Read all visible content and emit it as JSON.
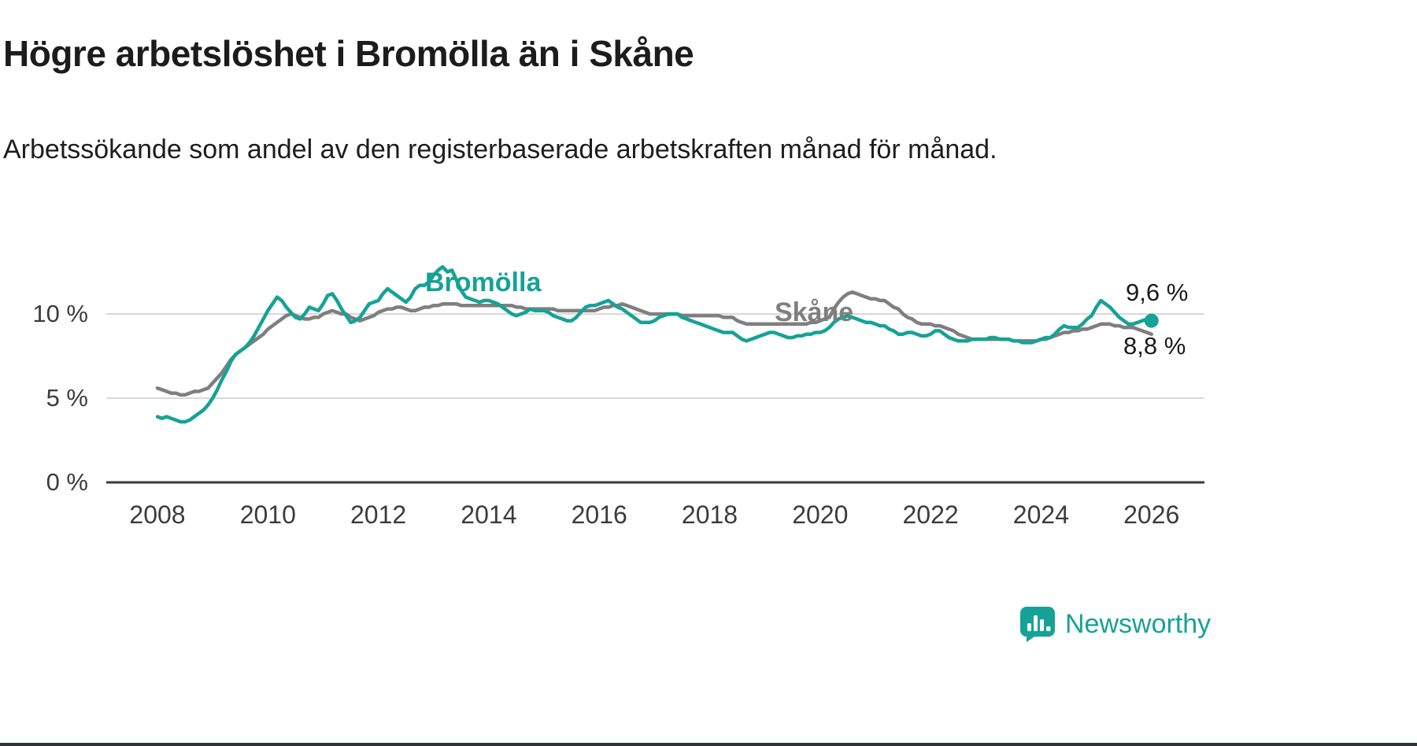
{
  "header": {
    "title": "Högre arbetslöshet i Bromölla än i Skåne",
    "subtitle": "Arbetssökande som andel av den registerbaserade arbetskraften månad för månad."
  },
  "branding": {
    "name": "Newsworthy",
    "color": "#16a296"
  },
  "chart_data": {
    "type": "line",
    "title": "Högre arbetslöshet i Bromölla än i Skåne",
    "subtitle": "Arbetssökande som andel av den registerbaserade arbetskraften månad för månad.",
    "unit": "%",
    "x_start": 2008,
    "x_end": 2026,
    "x_interval_months": 1,
    "x_ticks": [
      2008,
      2010,
      2012,
      2014,
      2016,
      2018,
      2020,
      2022,
      2024,
      2026
    ],
    "y_ticks": [
      0,
      5,
      10
    ],
    "y_tick_labels": [
      "0 %",
      "5 %",
      "10 %"
    ],
    "ylim": [
      0,
      13.5
    ],
    "grid": "horizontal-light",
    "grid_color": "#d8d8d8",
    "axis_color": "#3a3a3a",
    "legend_position": "inline",
    "series": [
      {
        "name": "Bromölla",
        "color": "#16a296",
        "end_label": "9,6 %",
        "end_value": 9.6,
        "end_marker": true,
        "values": [
          3.9,
          3.8,
          3.9,
          3.8,
          3.7,
          3.6,
          3.6,
          3.7,
          3.9,
          4.1,
          4.3,
          4.6,
          5.0,
          5.5,
          6.1,
          6.6,
          7.2,
          7.6,
          7.8,
          8.0,
          8.3,
          8.7,
          9.2,
          9.7,
          10.2,
          10.6,
          11.0,
          10.8,
          10.4,
          10.1,
          9.8,
          9.7,
          10.0,
          10.4,
          10.3,
          10.2,
          10.6,
          11.1,
          11.2,
          10.8,
          10.3,
          9.9,
          9.5,
          9.6,
          9.8,
          10.2,
          10.6,
          10.7,
          10.8,
          11.2,
          11.5,
          11.3,
          11.1,
          10.9,
          10.7,
          11.0,
          11.5,
          11.7,
          11.7,
          11.9,
          12.3,
          12.6,
          12.8,
          12.5,
          12.6,
          12.0,
          11.4,
          11.0,
          10.9,
          10.8,
          10.7,
          10.8,
          10.8,
          10.7,
          10.6,
          10.4,
          10.2,
          10.0,
          9.9,
          10.0,
          10.1,
          10.3,
          10.2,
          10.2,
          10.2,
          10.1,
          9.9,
          9.8,
          9.7,
          9.6,
          9.6,
          9.8,
          10.1,
          10.4,
          10.5,
          10.5,
          10.6,
          10.7,
          10.8,
          10.6,
          10.4,
          10.3,
          10.1,
          9.9,
          9.7,
          9.5,
          9.5,
          9.5,
          9.6,
          9.8,
          9.9,
          10.0,
          10.0,
          10.0,
          9.8,
          9.7,
          9.6,
          9.5,
          9.4,
          9.3,
          9.2,
          9.1,
          9.0,
          8.9,
          8.9,
          8.9,
          8.7,
          8.5,
          8.4,
          8.5,
          8.6,
          8.7,
          8.8,
          8.9,
          8.9,
          8.8,
          8.7,
          8.6,
          8.6,
          8.7,
          8.7,
          8.8,
          8.8,
          8.9,
          8.9,
          9.0,
          9.2,
          9.5,
          9.7,
          9.8,
          9.9,
          9.8,
          9.7,
          9.6,
          9.5,
          9.5,
          9.4,
          9.3,
          9.3,
          9.1,
          9.0,
          8.8,
          8.8,
          8.9,
          8.9,
          8.8,
          8.7,
          8.7,
          8.8,
          9.0,
          9.0,
          8.8,
          8.6,
          8.5,
          8.4,
          8.4,
          8.4,
          8.5,
          8.5,
          8.5,
          8.5,
          8.6,
          8.6,
          8.5,
          8.5,
          8.5,
          8.4,
          8.4,
          8.3,
          8.3,
          8.3,
          8.4,
          8.5,
          8.6,
          8.6,
          8.8,
          9.1,
          9.3,
          9.2,
          9.2,
          9.2,
          9.4,
          9.7,
          9.9,
          10.4,
          10.8,
          10.6,
          10.4,
          10.1,
          9.8,
          9.6,
          9.4,
          9.4,
          9.5,
          9.6,
          9.7,
          9.6
        ]
      },
      {
        "name": "Skåne",
        "color": "#7f7f7f",
        "end_label": "8,8 %",
        "end_value": 8.8,
        "end_marker": false,
        "values": [
          5.6,
          5.5,
          5.4,
          5.3,
          5.3,
          5.2,
          5.2,
          5.3,
          5.4,
          5.4,
          5.5,
          5.6,
          5.9,
          6.2,
          6.5,
          6.9,
          7.3,
          7.6,
          7.8,
          8.0,
          8.2,
          8.4,
          8.6,
          8.8,
          9.1,
          9.3,
          9.5,
          9.7,
          9.9,
          10.0,
          9.9,
          9.8,
          9.7,
          9.7,
          9.8,
          9.8,
          10.0,
          10.1,
          10.2,
          10.1,
          10.0,
          10.0,
          9.8,
          9.7,
          9.6,
          9.7,
          9.8,
          9.9,
          10.1,
          10.2,
          10.3,
          10.3,
          10.4,
          10.4,
          10.3,
          10.2,
          10.2,
          10.3,
          10.4,
          10.4,
          10.5,
          10.5,
          10.6,
          10.6,
          10.6,
          10.6,
          10.5,
          10.5,
          10.5,
          10.5,
          10.5,
          10.5,
          10.5,
          10.5,
          10.5,
          10.5,
          10.5,
          10.5,
          10.4,
          10.4,
          10.3,
          10.3,
          10.3,
          10.3,
          10.3,
          10.3,
          10.3,
          10.2,
          10.2,
          10.2,
          10.2,
          10.2,
          10.2,
          10.2,
          10.2,
          10.2,
          10.3,
          10.4,
          10.4,
          10.5,
          10.5,
          10.6,
          10.5,
          10.4,
          10.3,
          10.2,
          10.1,
          10.0,
          10.0,
          10.0,
          10.0,
          10.0,
          10.0,
          10.0,
          9.9,
          9.9,
          9.9,
          9.9,
          9.9,
          9.9,
          9.9,
          9.9,
          9.9,
          9.8,
          9.8,
          9.8,
          9.6,
          9.5,
          9.4,
          9.4,
          9.4,
          9.4,
          9.4,
          9.4,
          9.4,
          9.4,
          9.4,
          9.4,
          9.4,
          9.4,
          9.4,
          9.4,
          9.5,
          9.5,
          9.6,
          9.7,
          9.8,
          10.3,
          10.7,
          11.0,
          11.2,
          11.3,
          11.2,
          11.1,
          11.0,
          10.9,
          10.9,
          10.8,
          10.8,
          10.6,
          10.4,
          10.3,
          10.0,
          9.8,
          9.7,
          9.5,
          9.4,
          9.4,
          9.4,
          9.3,
          9.3,
          9.2,
          9.1,
          9.0,
          8.8,
          8.7,
          8.6,
          8.5,
          8.5,
          8.5,
          8.5,
          8.5,
          8.5,
          8.5,
          8.5,
          8.5,
          8.4,
          8.4,
          8.4,
          8.4,
          8.4,
          8.4,
          8.5,
          8.5,
          8.6,
          8.7,
          8.8,
          8.9,
          8.9,
          9.0,
          9.0,
          9.1,
          9.1,
          9.2,
          9.3,
          9.4,
          9.4,
          9.4,
          9.3,
          9.3,
          9.2,
          9.2,
          9.2,
          9.1,
          9.0,
          8.9,
          8.8
        ]
      }
    ]
  }
}
